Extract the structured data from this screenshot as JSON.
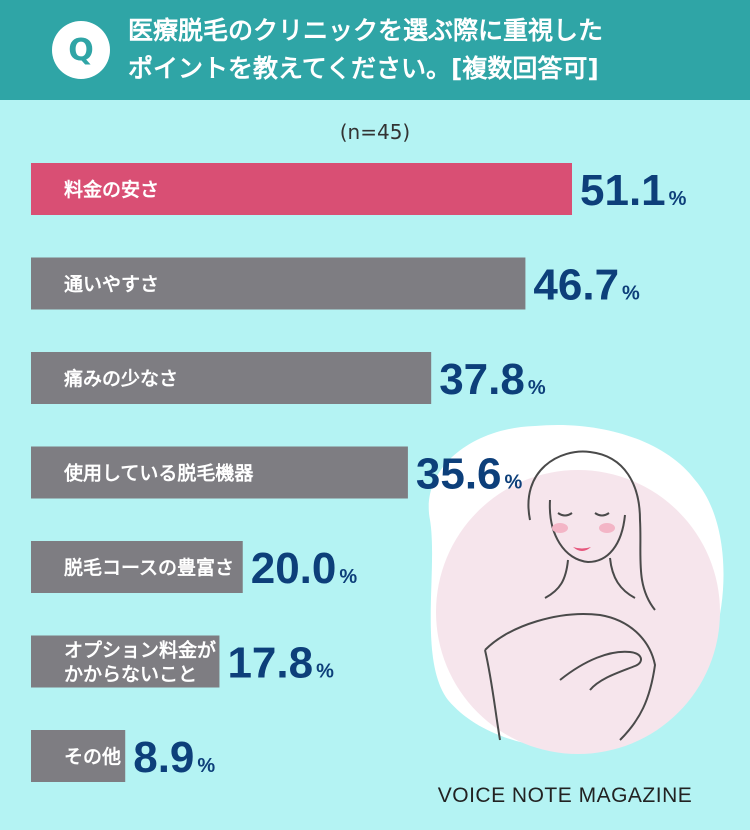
{
  "header": {
    "badge": "Q",
    "question_line1": "医療脱毛のクリニックを選ぶ際に重視した",
    "question_line2": "ポイントを教えてください。[複数回答可]"
  },
  "sample_size": "(n=45)",
  "footer": "VOICE NOTE MAGAZINE",
  "colors": {
    "highlight_bar": "#d94f74",
    "bar": "#7e7d82",
    "value_text": "#0d3f7a",
    "header_bg": "#2fa5a6",
    "page_bg": "#b4f3f3"
  },
  "chart_data": {
    "type": "bar",
    "orientation": "horizontal",
    "categories": [
      [
        "料金の安さ"
      ],
      [
        "通いやすさ"
      ],
      [
        "痛みの少なさ"
      ],
      [
        "使用している脱毛機器"
      ],
      [
        "脱毛コースの豊富さ"
      ],
      [
        "オプション料金が",
        "かからないこと"
      ],
      [
        "その他"
      ]
    ],
    "values": [
      51.1,
      46.7,
      37.8,
      35.6,
      20.0,
      17.8,
      8.9
    ],
    "value_labels": [
      "51.1",
      "46.7",
      "37.8",
      "35.6",
      "20.0",
      "17.8",
      "8.9"
    ],
    "unit": "%",
    "highlight_index": 0,
    "xlim": [
      0,
      51.1
    ],
    "grid": false,
    "legend": "none"
  }
}
